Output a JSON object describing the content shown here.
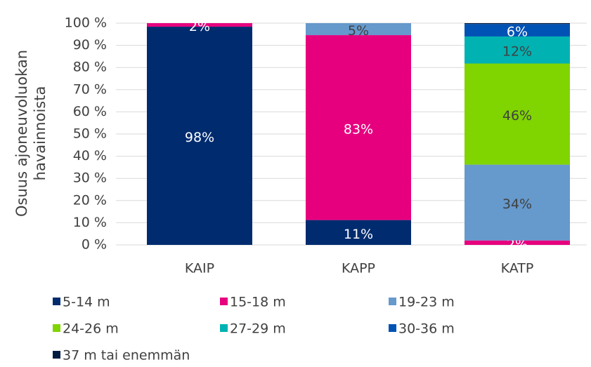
{
  "chart_data": {
    "type": "stacked_bar",
    "y_label": [
      "Osuus ajoneuvoluokan",
      "havainnoista"
    ],
    "categories": [
      "KAIP",
      "KAPP",
      "KATP"
    ],
    "series": [
      {
        "name": "5-14 m",
        "color": "#002b6f",
        "values": [
          98.4,
          11.2,
          0
        ],
        "value_labels": [
          "98%",
          "11%",
          null
        ]
      },
      {
        "name": "15-18 m",
        "color": "#e6007e",
        "values": [
          1.6,
          83.4,
          2.0
        ],
        "value_labels": [
          "2%",
          "83%",
          "2%"
        ]
      },
      {
        "name": "19-23 m",
        "color": "#6699cc",
        "values": [
          0,
          5.4,
          34.2
        ],
        "value_labels": [
          null,
          "5%",
          "34%"
        ]
      },
      {
        "name": "24-26 m",
        "color": "#80d400",
        "values": [
          0,
          0,
          45.6
        ],
        "value_labels": [
          null,
          null,
          "46%"
        ]
      },
      {
        "name": "27-29 m",
        "color": "#00b2b2",
        "values": [
          0,
          0,
          12.2
        ],
        "value_labels": [
          null,
          null,
          "12%"
        ]
      },
      {
        "name": "30-36 m",
        "color": "#0052b4",
        "values": [
          0,
          0,
          5.6
        ],
        "value_labels": [
          null,
          null,
          "6%"
        ]
      },
      {
        "name": "37 m tai enemmän",
        "color": "#001a40",
        "values": [
          0,
          0,
          0.4
        ],
        "value_labels": [
          null,
          null,
          null
        ]
      }
    ],
    "ylim": [
      0,
      100
    ],
    "yticks": [
      {
        "value": 0,
        "label": "0 %"
      },
      {
        "value": 10,
        "label": "10 %"
      },
      {
        "value": 20,
        "label": "20 %"
      },
      {
        "value": 30,
        "label": "30 %"
      },
      {
        "value": 40,
        "label": "40 %"
      },
      {
        "value": 50,
        "label": "50 %"
      },
      {
        "value": 60,
        "label": "60 %"
      },
      {
        "value": 70,
        "label": "70 %"
      },
      {
        "value": 80,
        "label": "80 %"
      },
      {
        "value": 90,
        "label": "90 %"
      },
      {
        "value": 100,
        "label": "100 %"
      }
    ],
    "grid": true,
    "legend": "bottom"
  }
}
